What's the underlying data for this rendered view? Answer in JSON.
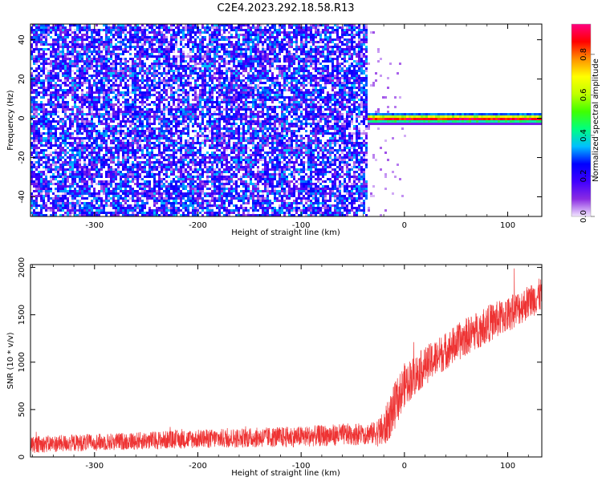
{
  "title": "C2E4.2023.292.18.58.R13",
  "chart_data": [
    {
      "type": "heatmap",
      "xlabel": "Height of straight line (km)",
      "ylabel": "Frequency (Hz)",
      "xlim": [
        -362,
        133
      ],
      "ylim": [
        -50,
        48
      ],
      "xticks": [
        -300,
        -200,
        -100,
        0,
        100
      ],
      "yticks": [
        -40,
        -20,
        0,
        20,
        40
      ],
      "xtick_labels": [
        "-300",
        "-200",
        "-100",
        "0",
        "100"
      ],
      "ytick_labels": [
        "-40",
        "-20",
        "0",
        "20",
        "40"
      ],
      "noise_region_x": [
        -362,
        -36
      ],
      "tone_region_x": [
        -36,
        133
      ],
      "tone_frequency_hz": 0,
      "noise_amplitude_range": [
        0.0,
        0.35
      ],
      "tone_amplitude_range": [
        0.5,
        0.95
      ],
      "colorbar": {
        "label": "Normalized spectral amplitude",
        "range": [
          0.0,
          0.95
        ],
        "ticks": [
          0.0,
          0.2,
          0.4,
          0.6,
          0.8
        ],
        "tick_labels": [
          "0.0",
          "0.2",
          "0.4",
          "0.6",
          "0.8"
        ],
        "colors": [
          "#f2e6ff",
          "#8a2be2",
          "#4000ff",
          "#0000ff",
          "#00bfff",
          "#00ff80",
          "#40ff00",
          "#c0ff00",
          "#ffff00",
          "#ff9000",
          "#ff0000",
          "#ff0080"
        ]
      }
    },
    {
      "type": "line",
      "xlabel": "Height of straight line (km)",
      "ylabel": "SNR (10 * v/v)",
      "xlim": [
        -362,
        133
      ],
      "ylim": [
        0,
        2030
      ],
      "xticks": [
        -300,
        -200,
        -100,
        0,
        100
      ],
      "yticks": [
        0,
        500,
        1000,
        1500,
        2000
      ],
      "xtick_labels": [
        "-300",
        "-200",
        "-100",
        "0",
        "100"
      ],
      "ytick_labels": [
        "0",
        "500",
        "1000",
        "1500",
        "2000"
      ],
      "color": "#ee3333",
      "trend": {
        "x": [
          -362,
          -300,
          -200,
          -100,
          -30,
          -20,
          -10,
          0,
          20,
          40,
          60,
          80,
          100,
          133
        ],
        "mean": [
          130,
          155,
          190,
          215,
          250,
          280,
          520,
          760,
          960,
          1120,
          1270,
          1400,
          1500,
          1720
        ],
        "spread": [
          90,
          90,
          100,
          110,
          120,
          200,
          250,
          230,
          200,
          200,
          200,
          200,
          190,
          180
        ]
      }
    }
  ]
}
